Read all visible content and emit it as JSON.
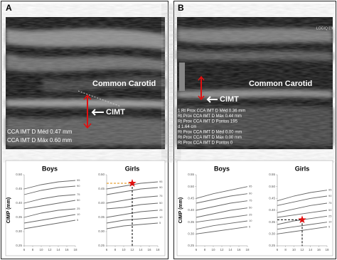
{
  "panels": [
    {
      "label": "A",
      "image": {
        "labels": [
          "Common Carotid",
          "CIMT"
        ],
        "measurements": [
          "CCA IMT D Méd 0.47 mm",
          "CCA IMT D Máx 0.60 mm"
        ]
      },
      "charts": [
        {
          "title": "Boys",
          "y_label": "CIMP (mm)",
          "ylim": [
            0.25,
            0.5
          ],
          "yticks": [
            {
              "value": 0.25,
              "label": "0.25"
            },
            {
              "value": 0.3,
              "label": "0.30"
            },
            0.35,
            {
              "value": 0.4,
              "label": "0.40"
            },
            0.45,
            {
              "value": 0.5,
              "label": "0.50"
            }
          ],
          "xlim": [
            6,
            18
          ],
          "xticks": [
            6,
            8,
            10,
            12,
            14,
            16,
            18
          ],
          "curve_x": [
            6,
            10,
            14,
            18
          ],
          "percentiles": [
            95,
            90,
            75,
            50,
            25,
            10,
            5
          ],
          "curves": [
            [
              0.45,
              0.465,
              0.475,
              0.48
            ],
            [
              0.43,
              0.445,
              0.455,
              0.46
            ],
            [
              0.4,
              0.415,
              0.425,
              0.43
            ],
            [
              0.38,
              0.39,
              0.4,
              0.41
            ],
            [
              0.35,
              0.365,
              0.375,
              0.38
            ],
            [
              0.33,
              0.34,
              0.35,
              0.36
            ],
            [
              0.31,
              0.32,
              0.33,
              0.34
            ]
          ]
        },
        {
          "title": "Girls",
          "ylim": [
            0.25,
            0.5
          ],
          "yticks": [
            {
              "value": 0.25,
              "label": "0.25"
            },
            {
              "value": 0.3,
              "label": "0.30"
            },
            0.35,
            {
              "value": 0.4,
              "label": "0.40"
            },
            0.45,
            {
              "value": 0.5,
              "label": "0.50"
            }
          ],
          "xlim": [
            6,
            18
          ],
          "xticks": [
            6,
            8,
            10,
            12,
            14,
            16,
            18
          ],
          "curve_x": [
            6,
            10,
            14,
            18
          ],
          "percentiles": [
            95,
            90,
            75,
            50,
            25,
            10,
            5
          ],
          "curves": [
            [
              0.45,
              0.46,
              0.47,
              0.475
            ],
            [
              0.43,
              0.44,
              0.45,
              0.455
            ],
            [
              0.4,
              0.41,
              0.42,
              0.425
            ],
            [
              0.38,
              0.385,
              0.395,
              0.4
            ],
            [
              0.35,
              0.36,
              0.37,
              0.375
            ],
            [
              0.33,
              0.34,
              0.345,
              0.35
            ],
            [
              0.31,
              0.32,
              0.325,
              0.33
            ]
          ],
          "marker": {
            "x": 12,
            "y": 0.47
          }
        }
      ]
    },
    {
      "label": "B",
      "image": {
        "labels": [
          "Common Carotid",
          "CIMT"
        ],
        "scanner": "LOGIQ E9",
        "measurements": [
          "1 Rt Prox CCA IMT D Méd 0.36 mm",
          "Rt Prox CCA IMT D Máx 0.44 mm",
          "Rt Prox CCA IMT D Pontos 195",
          "d 1.64 cm",
          "Rt Prox CCA IMT D Méd 0.00 mm",
          "Rt Prox CCA IMT D Máx 0.00 mm",
          "Rt Prox CCA IMT D Pontos 0"
        ]
      },
      "charts": [
        {
          "title": "Boys",
          "y_label": "CIMP (mm)",
          "ylim": [
            0.25,
            0.55
          ],
          "yticks": [
            0.55,
            {
              "value": 0.5,
              "label": "0.50"
            },
            0.45,
            {
              "value": 0.4,
              "label": "0.40"
            },
            0.35,
            {
              "value": 0.3,
              "label": "0.30"
            },
            0.25
          ],
          "xlim": [
            6,
            18
          ],
          "xticks": [
            6,
            8,
            10,
            12,
            14,
            16,
            18
          ],
          "curve_x": [
            6,
            10,
            14,
            18
          ],
          "percentiles": [
            95,
            90,
            75,
            50,
            25,
            10,
            5
          ],
          "curves": [
            [
              0.45,
              0.47,
              0.485,
              0.5
            ],
            [
              0.43,
              0.445,
              0.46,
              0.47
            ],
            [
              0.4,
              0.415,
              0.43,
              0.44
            ],
            [
              0.37,
              0.385,
              0.4,
              0.41
            ],
            [
              0.35,
              0.36,
              0.37,
              0.38
            ],
            [
              0.32,
              0.335,
              0.345,
              0.355
            ],
            [
              0.3,
              0.31,
              0.32,
              0.33
            ]
          ]
        },
        {
          "title": "Girls",
          "ylim": [
            0.25,
            0.55
          ],
          "yticks": [
            0.55,
            {
              "value": 0.5,
              "label": "0.50"
            },
            0.45,
            {
              "value": 0.4,
              "label": "0.40"
            },
            0.35,
            {
              "value": 0.3,
              "label": "0.30"
            },
            0.25
          ],
          "xlim": [
            6,
            18
          ],
          "xticks": [
            6,
            8,
            10,
            12,
            14,
            16,
            18
          ],
          "curve_x": [
            6,
            10,
            14,
            18
          ],
          "percentiles": [
            95,
            90,
            75,
            50,
            25,
            10,
            5
          ],
          "curves": [
            [
              0.44,
              0.46,
              0.475,
              0.485
            ],
            [
              0.42,
              0.435,
              0.45,
              0.46
            ],
            [
              0.39,
              0.405,
              0.42,
              0.43
            ],
            [
              0.37,
              0.38,
              0.39,
              0.4
            ],
            [
              0.34,
              0.355,
              0.365,
              0.375
            ],
            [
              0.32,
              0.33,
              0.34,
              0.35
            ],
            [
              0.3,
              0.31,
              0.32,
              0.33
            ]
          ],
          "marker": {
            "x": 12,
            "y": 0.36
          }
        }
      ]
    }
  ]
}
